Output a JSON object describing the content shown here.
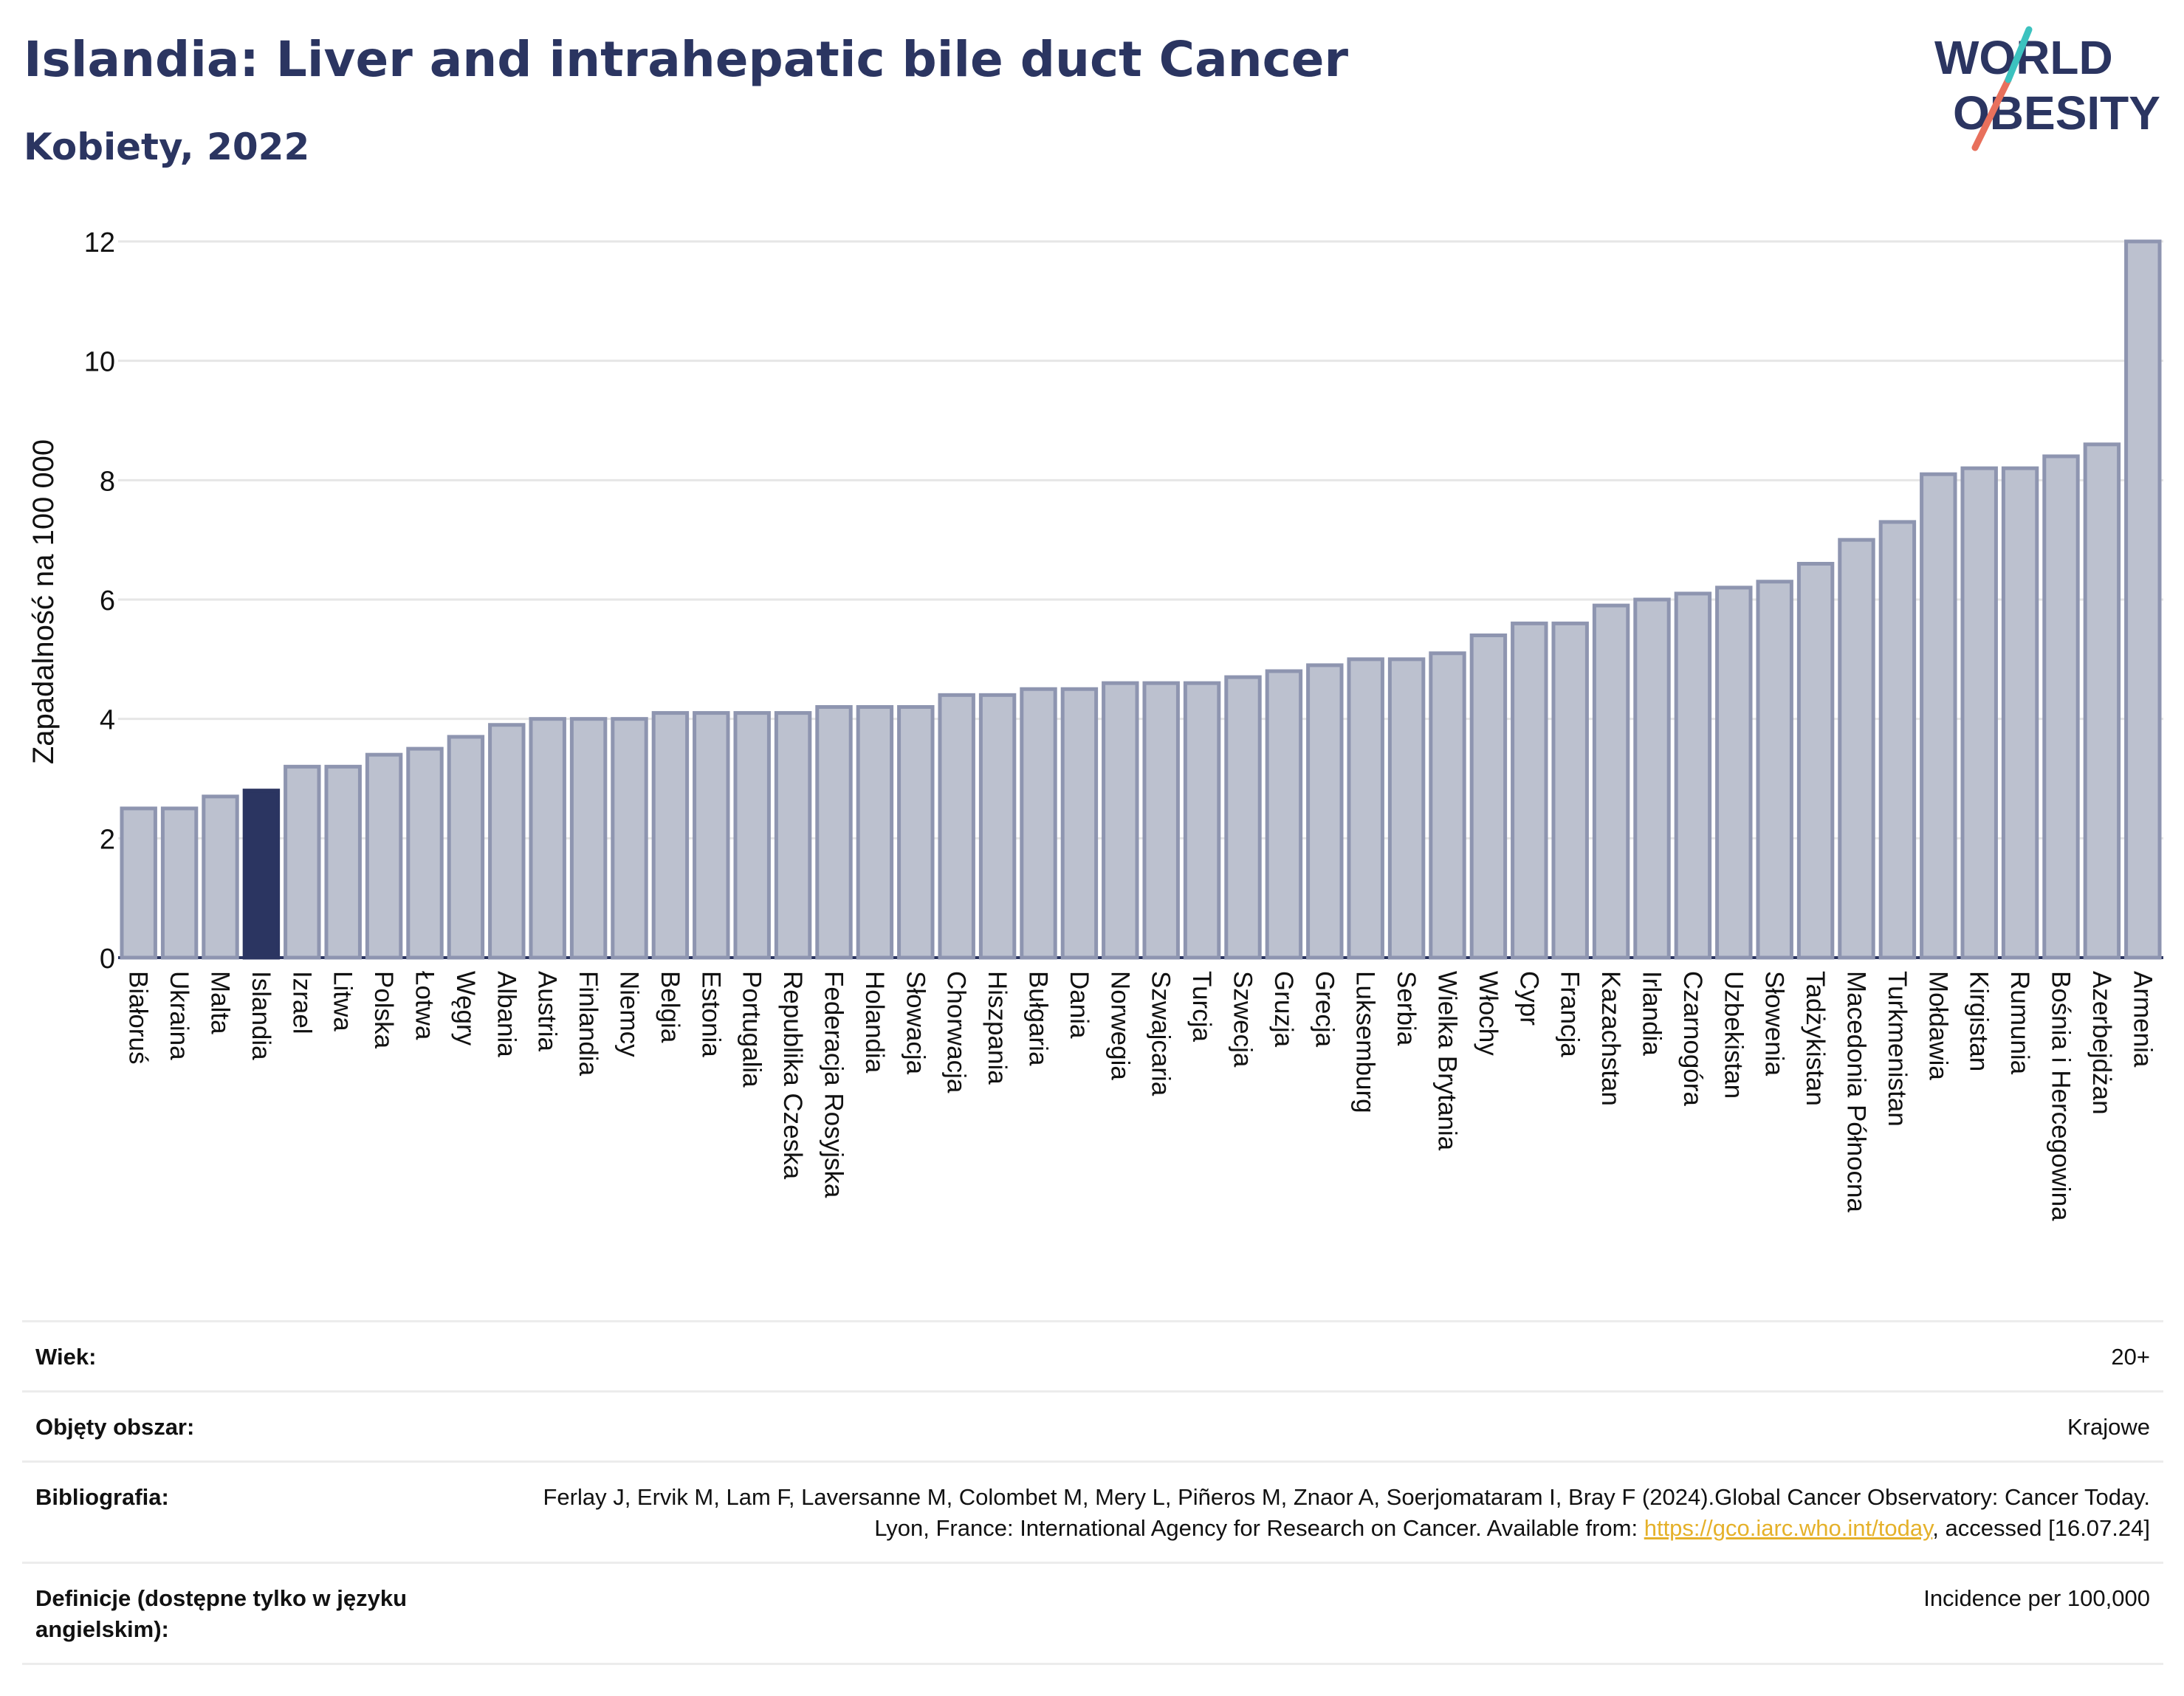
{
  "header": {
    "title": "Islandia: Liver and intrahepatic bile duct Cancer",
    "subtitle": "Kobiety, 2022",
    "logo_text_top": "WORLD",
    "logo_text_bottom": "OBESITY"
  },
  "chart_data": {
    "type": "bar",
    "ylabel": "Zapadalność na 100 000",
    "xlabel": "",
    "ylim": [
      0,
      12
    ],
    "yticks": [
      0,
      2,
      4,
      6,
      8,
      10,
      12
    ],
    "grid": true,
    "highlight": "Islandia",
    "colors": {
      "bar": "#bcc1cf",
      "bar_border": "#8e95b0",
      "highlight": "#2b3561",
      "grid": "#e6e6e6",
      "axis": "#2b3561"
    },
    "categories": [
      "Białoruś",
      "Ukraina",
      "Malta",
      "Islandia",
      "Izrael",
      "Litwa",
      "Polska",
      "Łotwa",
      "Węgry",
      "Albania",
      "Austria",
      "Finlandia",
      "Niemcy",
      "Belgia",
      "Estonia",
      "Portugalia",
      "Republika Czeska",
      "Federacja Rosyjska",
      "Holandia",
      "Słowacja",
      "Chorwacja",
      "Hiszpania",
      "Bułgaria",
      "Dania",
      "Norwegia",
      "Szwajcaria",
      "Turcja",
      "Szwecja",
      "Gruzja",
      "Grecja",
      "Luksemburg",
      "Serbia",
      "Wielka Brytania",
      "Włochy",
      "Cypr",
      "Francja",
      "Kazachstan",
      "Irlandia",
      "Czarnogóra",
      "Uzbekistan",
      "Słowenia",
      "Tadżykistan",
      "Macedonia Północna",
      "Turkmenistan",
      "Mołdawia",
      "Kirgistan",
      "Rumunia",
      "Bośnia i Hercegowina",
      "Azerbejdżan",
      "Armenia"
    ],
    "values": [
      2.5,
      2.5,
      2.7,
      2.8,
      3.2,
      3.2,
      3.4,
      3.5,
      3.7,
      3.9,
      4.0,
      4.0,
      4.0,
      4.1,
      4.1,
      4.1,
      4.1,
      4.2,
      4.2,
      4.2,
      4.4,
      4.4,
      4.5,
      4.5,
      4.6,
      4.6,
      4.6,
      4.7,
      4.8,
      4.9,
      5.0,
      5.0,
      5.1,
      5.4,
      5.6,
      5.6,
      5.9,
      6.0,
      6.1,
      6.2,
      6.3,
      6.6,
      7.0,
      7.3,
      8.1,
      8.2,
      8.2,
      8.4,
      8.6,
      12.0
    ]
  },
  "info": {
    "age_label": "Wiek:",
    "age_value": "20+",
    "coverage_label": "Objęty obszar:",
    "coverage_value": "Krajowe",
    "bibliography_label": "Bibliografia:",
    "bibliography_text": "Ferlay J, Ervik M, Lam F, Laversanne M, Colombet M, Mery L, Piñeros M, Znaor A, Soerjomataram I, Bray F (2024).Global Cancer Observatory: Cancer Today. Lyon, France: International Agency for Research on Cancer. Available from: ",
    "bibliography_link": "https://gco.iarc.who.int/today",
    "bibliography_suffix": ", accessed [16.07.24]",
    "definitions_label": "Definicje (dostępne tylko w języku angielskim):",
    "definitions_value": "Incidence per 100,000"
  }
}
